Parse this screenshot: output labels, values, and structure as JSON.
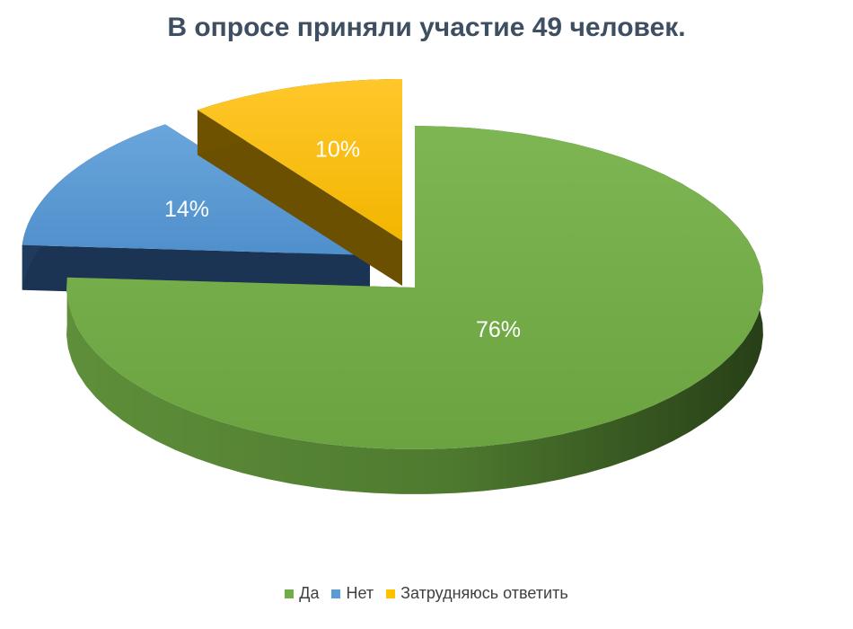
{
  "chart_data": {
    "type": "pie",
    "title": "В опросе приняли участие 49 человек.",
    "categories": [
      "Да",
      "Нет",
      "Затрудняюсь ответить"
    ],
    "values": [
      76,
      14,
      10
    ],
    "labels": [
      "76%",
      "14%",
      "10%"
    ],
    "colors": [
      "#70ad47",
      "#5b9bd5",
      "#ffc000"
    ],
    "legend_position": "bottom",
    "style": "3d-exploded"
  }
}
